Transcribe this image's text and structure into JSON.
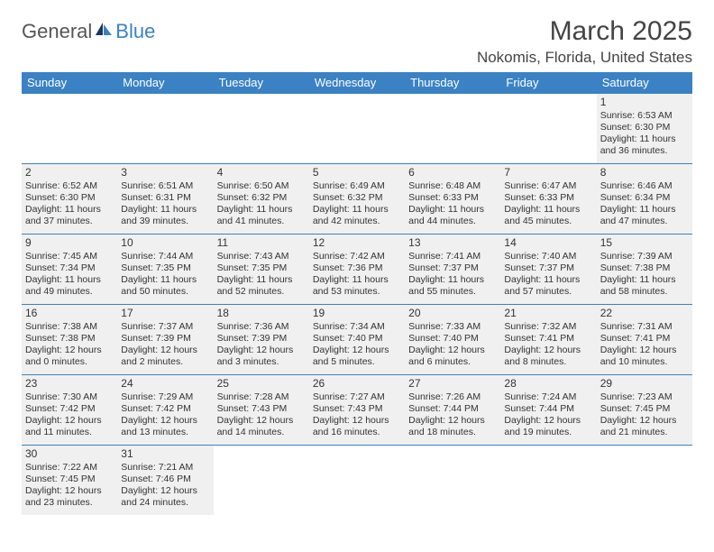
{
  "brand": {
    "part1": "General",
    "part2": "Blue"
  },
  "title": "March 2025",
  "location": "Nokomis, Florida, United States",
  "colors": {
    "header_bg": "#3b82c4",
    "header_text": "#ffffff",
    "cell_bg": "#f0f0f0",
    "cell_border": "#3b82c4",
    "page_bg": "#ffffff",
    "text": "#333333",
    "brand_gray": "#555555",
    "brand_blue": "#3b82c4"
  },
  "weekdays": [
    "Sunday",
    "Monday",
    "Tuesday",
    "Wednesday",
    "Thursday",
    "Friday",
    "Saturday"
  ],
  "first_weekday_index": 6,
  "days": [
    {
      "n": 1,
      "sunrise": "6:53 AM",
      "sunset": "6:30 PM",
      "daylight": "11 hours and 36 minutes."
    },
    {
      "n": 2,
      "sunrise": "6:52 AM",
      "sunset": "6:30 PM",
      "daylight": "11 hours and 37 minutes."
    },
    {
      "n": 3,
      "sunrise": "6:51 AM",
      "sunset": "6:31 PM",
      "daylight": "11 hours and 39 minutes."
    },
    {
      "n": 4,
      "sunrise": "6:50 AM",
      "sunset": "6:32 PM",
      "daylight": "11 hours and 41 minutes."
    },
    {
      "n": 5,
      "sunrise": "6:49 AM",
      "sunset": "6:32 PM",
      "daylight": "11 hours and 42 minutes."
    },
    {
      "n": 6,
      "sunrise": "6:48 AM",
      "sunset": "6:33 PM",
      "daylight": "11 hours and 44 minutes."
    },
    {
      "n": 7,
      "sunrise": "6:47 AM",
      "sunset": "6:33 PM",
      "daylight": "11 hours and 45 minutes."
    },
    {
      "n": 8,
      "sunrise": "6:46 AM",
      "sunset": "6:34 PM",
      "daylight": "11 hours and 47 minutes."
    },
    {
      "n": 9,
      "sunrise": "7:45 AM",
      "sunset": "7:34 PM",
      "daylight": "11 hours and 49 minutes."
    },
    {
      "n": 10,
      "sunrise": "7:44 AM",
      "sunset": "7:35 PM",
      "daylight": "11 hours and 50 minutes."
    },
    {
      "n": 11,
      "sunrise": "7:43 AM",
      "sunset": "7:35 PM",
      "daylight": "11 hours and 52 minutes."
    },
    {
      "n": 12,
      "sunrise": "7:42 AM",
      "sunset": "7:36 PM",
      "daylight": "11 hours and 53 minutes."
    },
    {
      "n": 13,
      "sunrise": "7:41 AM",
      "sunset": "7:37 PM",
      "daylight": "11 hours and 55 minutes."
    },
    {
      "n": 14,
      "sunrise": "7:40 AM",
      "sunset": "7:37 PM",
      "daylight": "11 hours and 57 minutes."
    },
    {
      "n": 15,
      "sunrise": "7:39 AM",
      "sunset": "7:38 PM",
      "daylight": "11 hours and 58 minutes."
    },
    {
      "n": 16,
      "sunrise": "7:38 AM",
      "sunset": "7:38 PM",
      "daylight": "12 hours and 0 minutes."
    },
    {
      "n": 17,
      "sunrise": "7:37 AM",
      "sunset": "7:39 PM",
      "daylight": "12 hours and 2 minutes."
    },
    {
      "n": 18,
      "sunrise": "7:36 AM",
      "sunset": "7:39 PM",
      "daylight": "12 hours and 3 minutes."
    },
    {
      "n": 19,
      "sunrise": "7:34 AM",
      "sunset": "7:40 PM",
      "daylight": "12 hours and 5 minutes."
    },
    {
      "n": 20,
      "sunrise": "7:33 AM",
      "sunset": "7:40 PM",
      "daylight": "12 hours and 6 minutes."
    },
    {
      "n": 21,
      "sunrise": "7:32 AM",
      "sunset": "7:41 PM",
      "daylight": "12 hours and 8 minutes."
    },
    {
      "n": 22,
      "sunrise": "7:31 AM",
      "sunset": "7:41 PM",
      "daylight": "12 hours and 10 minutes."
    },
    {
      "n": 23,
      "sunrise": "7:30 AM",
      "sunset": "7:42 PM",
      "daylight": "12 hours and 11 minutes."
    },
    {
      "n": 24,
      "sunrise": "7:29 AM",
      "sunset": "7:42 PM",
      "daylight": "12 hours and 13 minutes."
    },
    {
      "n": 25,
      "sunrise": "7:28 AM",
      "sunset": "7:43 PM",
      "daylight": "12 hours and 14 minutes."
    },
    {
      "n": 26,
      "sunrise": "7:27 AM",
      "sunset": "7:43 PM",
      "daylight": "12 hours and 16 minutes."
    },
    {
      "n": 27,
      "sunrise": "7:26 AM",
      "sunset": "7:44 PM",
      "daylight": "12 hours and 18 minutes."
    },
    {
      "n": 28,
      "sunrise": "7:24 AM",
      "sunset": "7:44 PM",
      "daylight": "12 hours and 19 minutes."
    },
    {
      "n": 29,
      "sunrise": "7:23 AM",
      "sunset": "7:45 PM",
      "daylight": "12 hours and 21 minutes."
    },
    {
      "n": 30,
      "sunrise": "7:22 AM",
      "sunset": "7:45 PM",
      "daylight": "12 hours and 23 minutes."
    },
    {
      "n": 31,
      "sunrise": "7:21 AM",
      "sunset": "7:46 PM",
      "daylight": "12 hours and 24 minutes."
    }
  ],
  "labels": {
    "sunrise": "Sunrise:",
    "sunset": "Sunset:",
    "daylight": "Daylight:"
  }
}
